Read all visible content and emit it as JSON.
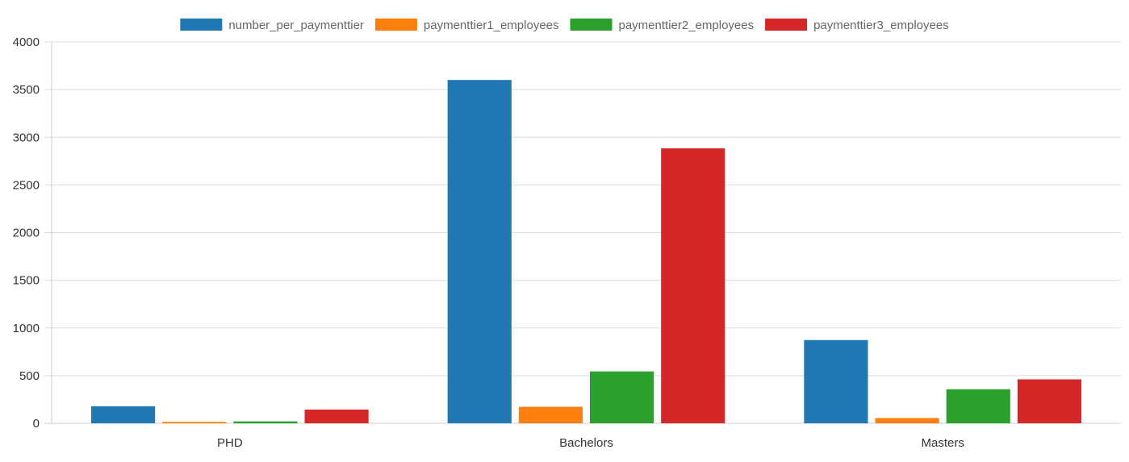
{
  "chart_data": {
    "type": "bar",
    "categories": [
      "PHD",
      "Bachelors",
      "Masters"
    ],
    "series": [
      {
        "name": "number_per_paymenttier",
        "color": "#1f77b4",
        "values": [
          179,
          3601,
          873
        ]
      },
      {
        "name": "paymenttier1_employees",
        "color": "#ff7f0e",
        "values": [
          15,
          173,
          55
        ]
      },
      {
        "name": "paymenttier2_employees",
        "color": "#2ca02c",
        "values": [
          20,
          544,
          357
        ]
      },
      {
        "name": "paymenttier3_employees",
        "color": "#d62728",
        "values": [
          144,
          2884,
          461
        ]
      }
    ],
    "yticks": [
      "0",
      "500",
      "1000",
      "1500",
      "2000",
      "2500",
      "3000",
      "3500",
      "4000"
    ],
    "ylim": [
      0,
      4000
    ],
    "grid": true,
    "legend_position": "top-center",
    "title": "",
    "xlabel": "",
    "ylabel": ""
  }
}
